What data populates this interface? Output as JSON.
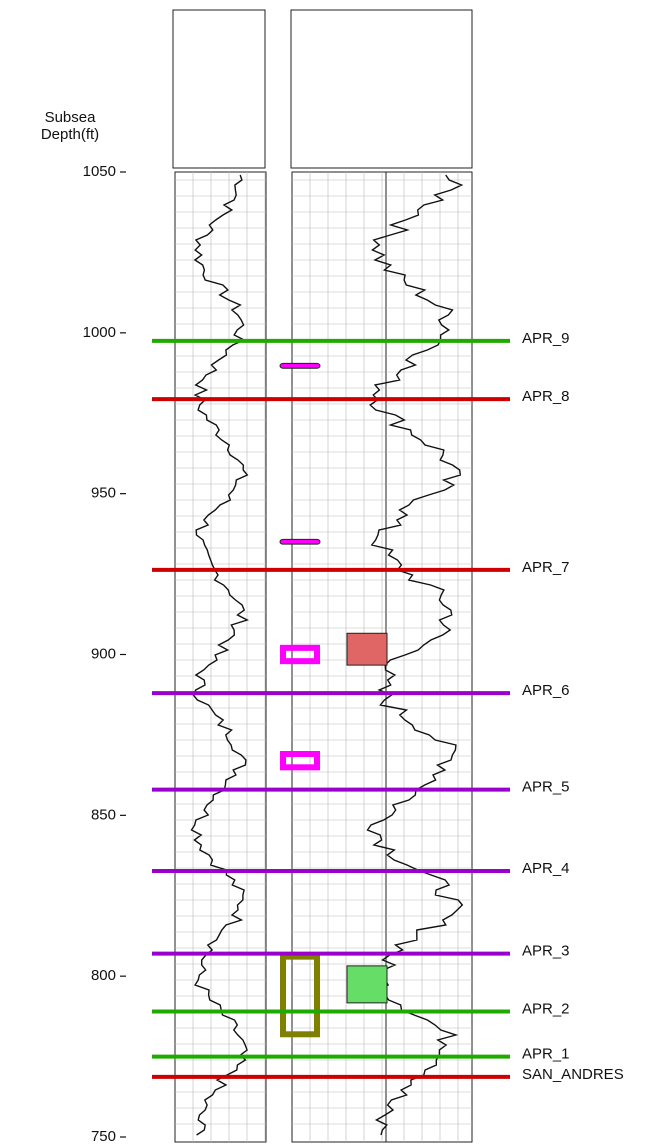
{
  "chart_data": {
    "type": "well_log",
    "ylabel": [
      "Subsea",
      "Depth(ft)"
    ],
    "ylim": [
      1050,
      750
    ],
    "yticks": [
      1050,
      1000,
      950,
      900,
      850,
      800,
      750
    ],
    "tops": [
      {
        "name": "APR_9",
        "depth": 997.5,
        "color": "#1faa00"
      },
      {
        "name": "APR_8",
        "depth": 979.4,
        "color": "#cc0000"
      },
      {
        "name": "APR_7",
        "depth": 926.3,
        "color": "#cc0000"
      },
      {
        "name": "APR_6",
        "depth": 888,
        "color": "#9a00cc"
      },
      {
        "name": "APR_5",
        "depth": 858,
        "color": "#9a00cc"
      },
      {
        "name": "APR_4",
        "depth": 832.7,
        "color": "#9a00cc"
      },
      {
        "name": "APR_3",
        "depth": 807,
        "color": "#9a00cc"
      },
      {
        "name": "APR_2",
        "depth": 789,
        "color": "#1faa00"
      },
      {
        "name": "APR_1",
        "depth": 775,
        "color": "#1faa00"
      },
      {
        "name": "SAN_ANDRES",
        "depth": 768.7,
        "color": "#cc0000"
      }
    ],
    "intervals": [
      {
        "top": 990.5,
        "bottom": 989,
        "color": "#ff00ff",
        "track": 2
      },
      {
        "top": 935.8,
        "bottom": 934.3,
        "color": "#ff00ff",
        "track": 2
      },
      {
        "top": 903,
        "bottom": 897,
        "color": "#ff00ff",
        "track": 2
      },
      {
        "top": 870,
        "bottom": 864,
        "color": "#ff00ff",
        "track": 2
      },
      {
        "top": 906.6,
        "bottom": 896.7,
        "color": "#e06666",
        "track": 3
      },
      {
        "top": 803.2,
        "bottom": 791.7,
        "color": "#66dd66",
        "track": 3
      },
      {
        "top": 807,
        "bottom": 781,
        "color": "#808000",
        "track": 2
      }
    ]
  }
}
